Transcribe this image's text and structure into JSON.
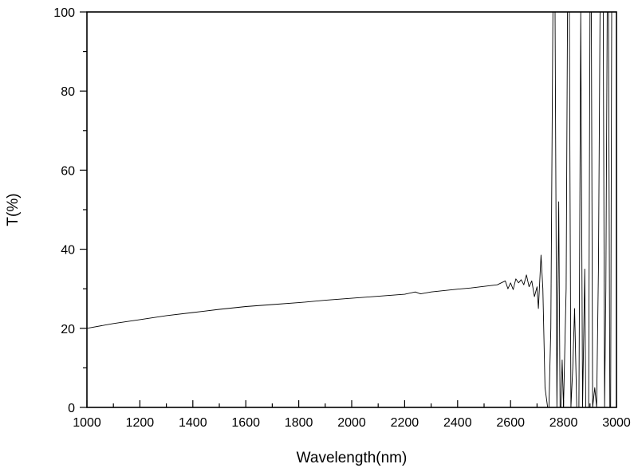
{
  "chart_data": {
    "type": "line",
    "title": "",
    "xlabel": "Wavelength(nm)",
    "ylabel": "T(%)",
    "xlim": [
      1000,
      3000
    ],
    "ylim": [
      0,
      100
    ],
    "x_ticks": [
      1000,
      1200,
      1400,
      1600,
      1800,
      2000,
      2200,
      2400,
      2600,
      2800,
      3000
    ],
    "x_tick_labels": [
      "1000",
      "1200",
      "1400",
      "1600",
      "1800",
      "2000",
      "2200",
      "2400",
      "2600",
      "2800",
      "3000"
    ],
    "y_ticks": [
      0,
      20,
      40,
      60,
      80,
      100
    ],
    "y_tick_labels": [
      "0",
      "20",
      "40",
      "60",
      "80",
      "100"
    ],
    "grid": false,
    "legend": "none",
    "line_color": "#000000",
    "series": [
      {
        "x": [
          1000,
          1100,
          1200,
          1300,
          1400,
          1500,
          1600,
          1700,
          1800,
          1900,
          2000,
          2100,
          2200,
          2240,
          2260,
          2300,
          2400,
          2450,
          2500,
          2550,
          2580,
          2590,
          2600,
          2610,
          2620,
          2630,
          2640,
          2650,
          2660,
          2670,
          2680,
          2690,
          2700,
          2705,
          2715,
          2722,
          2730,
          2740,
          2745,
          2752,
          2760,
          2768,
          2775,
          2782,
          2787,
          2790,
          2795,
          2800,
          2810,
          2815,
          2822,
          2828,
          2835,
          2842,
          2850,
          2858,
          2865,
          2872,
          2880,
          2884,
          2888,
          2895,
          2900,
          2905,
          2910,
          2918,
          2925,
          2932,
          2938,
          2945,
          2950,
          2955,
          2960,
          2965,
          2970,
          2975,
          2978,
          2982,
          2986
        ],
        "y": [
          20,
          21.2,
          22.2,
          23.2,
          24,
          24.8,
          25.5,
          26,
          26.5,
          27.1,
          27.6,
          28.1,
          28.6,
          29.2,
          28.7,
          29.2,
          29.9,
          30.2,
          30.6,
          31,
          32,
          30,
          31.5,
          29.8,
          32.5,
          31.5,
          32.3,
          31,
          33.5,
          30.5,
          32,
          28,
          30.5,
          25,
          38.5,
          30,
          5,
          0,
          0,
          20,
          100,
          100,
          0,
          52,
          0,
          0,
          12,
          0,
          30,
          100,
          100,
          0,
          10,
          25,
          0,
          0,
          100,
          0,
          35,
          0,
          0,
          0,
          100,
          100,
          0,
          5,
          0,
          35,
          100,
          100,
          100,
          0,
          30,
          100,
          100,
          0,
          0,
          100,
          100
        ]
      }
    ]
  }
}
